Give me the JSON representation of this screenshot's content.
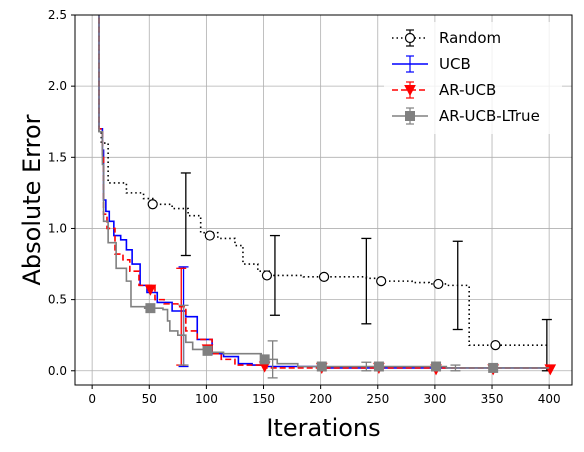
{
  "chart_data": {
    "type": "line",
    "xlabel": "Iterations",
    "ylabel": "Absolute Error",
    "xlim": [
      -15,
      420
    ],
    "ylim": [
      -0.1,
      2.5
    ],
    "xticks": [
      0,
      50,
      100,
      150,
      200,
      250,
      300,
      350,
      400
    ],
    "yticks": [
      0.0,
      0.5,
      1.0,
      1.5,
      2.0,
      2.5
    ],
    "xtick_labels": [
      "0",
      "50",
      "100",
      "150",
      "200",
      "250",
      "300",
      "350",
      "400"
    ],
    "ytick_labels": [
      "0.0",
      "0.5",
      "1.0",
      "1.5",
      "2.0",
      "2.5"
    ],
    "grid": true,
    "legend_position": "top-right",
    "series": [
      {
        "name": "Random",
        "color": "#000000",
        "linestyle": "dotted",
        "marker": "open-circle",
        "steps": [
          [
            5,
            2.6
          ],
          [
            6,
            1.68
          ],
          [
            8,
            1.6
          ],
          [
            14,
            1.32
          ],
          [
            30,
            1.25
          ],
          [
            45,
            1.21
          ],
          [
            55,
            1.17
          ],
          [
            70,
            1.14
          ],
          [
            84,
            1.09
          ],
          [
            95,
            0.97
          ],
          [
            110,
            0.93
          ],
          [
            125,
            0.88
          ],
          [
            132,
            0.75
          ],
          [
            145,
            0.7
          ],
          [
            155,
            0.67
          ],
          [
            185,
            0.66
          ],
          [
            240,
            0.65
          ],
          [
            255,
            0.63
          ],
          [
            280,
            0.62
          ],
          [
            295,
            0.61
          ],
          [
            310,
            0.6
          ],
          [
            330,
            0.18
          ],
          [
            400,
            0.18
          ]
        ],
        "markers": [
          [
            53,
            1.17
          ],
          [
            103,
            0.95
          ],
          [
            153,
            0.67
          ],
          [
            203,
            0.66
          ],
          [
            253,
            0.63
          ],
          [
            303,
            0.61
          ],
          [
            353,
            0.18
          ]
        ],
        "errorbars": [
          {
            "x": 82,
            "y": 1.1,
            "err": 0.29
          },
          {
            "x": 160,
            "y": 0.67,
            "err": 0.28
          },
          {
            "x": 240,
            "y": 0.63,
            "err": 0.3
          },
          {
            "x": 320,
            "y": 0.6,
            "err": 0.31
          },
          {
            "x": 398,
            "y": 0.18,
            "err": 0.18
          }
        ]
      },
      {
        "name": "UCB",
        "color": "#0000ff",
        "linestyle": "solid",
        "marker": "none",
        "steps": [
          [
            5,
            2.6
          ],
          [
            6,
            1.7
          ],
          [
            9,
            1.55
          ],
          [
            10,
            1.2
          ],
          [
            12,
            1.12
          ],
          [
            15,
            1.05
          ],
          [
            19,
            0.95
          ],
          [
            25,
            0.92
          ],
          [
            30,
            0.85
          ],
          [
            35,
            0.75
          ],
          [
            42,
            0.6
          ],
          [
            48,
            0.55
          ],
          [
            57,
            0.48
          ],
          [
            70,
            0.42
          ],
          [
            82,
            0.38
          ],
          [
            92,
            0.22
          ],
          [
            105,
            0.12
          ],
          [
            115,
            0.1
          ],
          [
            128,
            0.05
          ],
          [
            140,
            0.04
          ],
          [
            150,
            0.03
          ],
          [
            175,
            0.03
          ],
          [
            200,
            0.02
          ],
          [
            400,
            0.02
          ]
        ],
        "markers": [],
        "errorbars": [
          {
            "x": 80,
            "y": 0.38,
            "err": 0.35
          }
        ]
      },
      {
        "name": "AR-UCB",
        "color": "#ff0000",
        "linestyle": "dashed",
        "marker": "filled-triangle-down",
        "steps": [
          [
            5,
            2.6
          ],
          [
            6,
            1.7
          ],
          [
            9,
            1.5
          ],
          [
            10,
            1.1
          ],
          [
            13,
            1.0
          ],
          [
            20,
            0.82
          ],
          [
            27,
            0.78
          ],
          [
            33,
            0.7
          ],
          [
            41,
            0.6
          ],
          [
            55,
            0.5
          ],
          [
            63,
            0.47
          ],
          [
            75,
            0.45
          ],
          [
            82,
            0.28
          ],
          [
            92,
            0.22
          ],
          [
            105,
            0.12
          ],
          [
            113,
            0.08
          ],
          [
            125,
            0.04
          ],
          [
            150,
            0.02
          ],
          [
            200,
            0.02
          ],
          [
            400,
            0.01
          ]
        ],
        "markers": [
          [
            51,
            0.57
          ],
          [
            101,
            0.15
          ],
          [
            151,
            0.03
          ],
          [
            201,
            0.02
          ],
          [
            251,
            0.02
          ],
          [
            301,
            0.01
          ],
          [
            351,
            0.01
          ],
          [
            401,
            0.01
          ]
        ],
        "errorbars": [
          {
            "x": 78,
            "y": 0.38,
            "err": 0.34
          }
        ]
      },
      {
        "name": "AR-UCB-LTrue",
        "color": "#808080",
        "linestyle": "solid",
        "marker": "filled-square",
        "steps": [
          [
            5,
            2.6
          ],
          [
            6,
            1.68
          ],
          [
            9,
            1.45
          ],
          [
            10,
            1.05
          ],
          [
            14,
            0.9
          ],
          [
            21,
            0.72
          ],
          [
            30,
            0.63
          ],
          [
            34,
            0.45
          ],
          [
            46,
            0.44
          ],
          [
            62,
            0.43
          ],
          [
            66,
            0.35
          ],
          [
            68,
            0.28
          ],
          [
            75,
            0.25
          ],
          [
            82,
            0.2
          ],
          [
            88,
            0.15
          ],
          [
            100,
            0.13
          ],
          [
            115,
            0.12
          ],
          [
            130,
            0.12
          ],
          [
            148,
            0.08
          ],
          [
            162,
            0.05
          ],
          [
            180,
            0.03
          ],
          [
            240,
            0.03
          ],
          [
            260,
            0.03
          ],
          [
            310,
            0.02
          ],
          [
            400,
            0.02
          ]
        ],
        "markers": [
          [
            51,
            0.44
          ],
          [
            101,
            0.14
          ],
          [
            151,
            0.08
          ],
          [
            201,
            0.03
          ],
          [
            251,
            0.03
          ],
          [
            301,
            0.03
          ],
          [
            351,
            0.02
          ]
        ],
        "errorbars": [
          {
            "x": 80,
            "y": 0.25,
            "err": 0.21
          },
          {
            "x": 158,
            "y": 0.08,
            "err": 0.13
          },
          {
            "x": 240,
            "y": 0.03,
            "err": 0.03
          },
          {
            "x": 318,
            "y": 0.02,
            "err": 0.02
          }
        ]
      }
    ]
  }
}
